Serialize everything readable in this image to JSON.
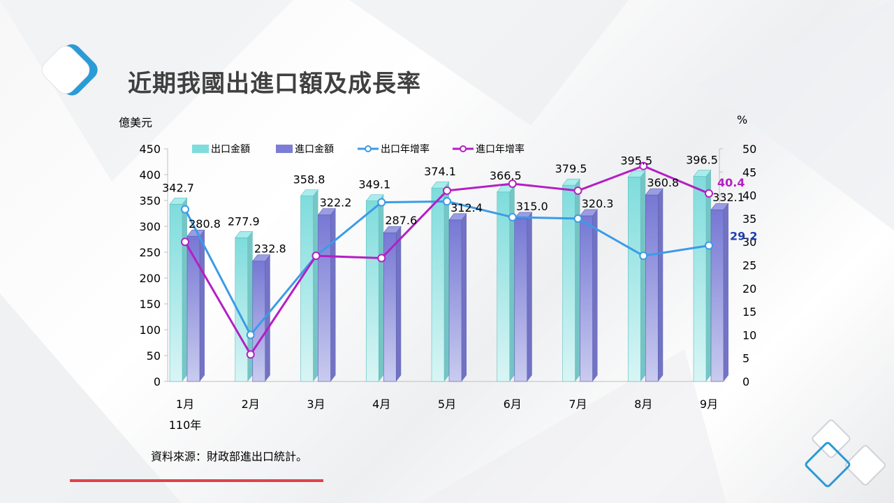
{
  "title": "近期我國出進口額及成長率",
  "source": "資料來源：財政部進出口統計。",
  "chart_data": {
    "type": "bar",
    "categories": [
      "1月",
      "2月",
      "3月",
      "4月",
      "5月",
      "6月",
      "7月",
      "8月",
      "9月"
    ],
    "year_label": "110年",
    "left_axis_unit": "億美元",
    "right_axis_unit": "%",
    "ylim_left": [
      0,
      450
    ],
    "ylim_right": [
      0,
      50
    ],
    "yticks_left": [
      0,
      50,
      100,
      150,
      200,
      250,
      300,
      350,
      400,
      450
    ],
    "yticks_right": [
      0,
      5,
      10,
      15,
      20,
      25,
      30,
      35,
      40,
      45,
      50
    ],
    "legend_position": "top",
    "series": [
      {
        "name": "出口金額",
        "type": "bar",
        "axis": "left",
        "color": "#7fdcdc",
        "values": [
          342.7,
          277.9,
          358.8,
          349.1,
          374.1,
          366.5,
          379.5,
          395.5,
          396.5
        ]
      },
      {
        "name": "進口金額",
        "type": "bar",
        "axis": "left",
        "color": "#7b7dd6",
        "values": [
          280.8,
          232.8,
          322.2,
          287.6,
          312.4,
          315.0,
          320.3,
          360.8,
          332.1
        ]
      },
      {
        "name": "出口年增率",
        "type": "line",
        "axis": "right",
        "color": "#3b9be8",
        "values": [
          37.0,
          10.0,
          27.0,
          38.5,
          38.7,
          35.3,
          35.0,
          27.0,
          29.2
        ]
      },
      {
        "name": "進口年增率",
        "type": "line",
        "axis": "right",
        "color": "#b41fc4",
        "values": [
          30.0,
          5.8,
          27.0,
          26.5,
          41.0,
          42.5,
          41.0,
          46.3,
          40.4
        ]
      }
    ],
    "labels": {
      "export": [
        "342.7",
        "277.9",
        "358.8",
        "349.1",
        "374.1",
        "366.5",
        "379.5",
        "395.5",
        "396.5"
      ],
      "import": [
        "280.8",
        "232.8",
        "322.2",
        "287.6",
        "312.4",
        "315.0",
        "320.3",
        "360.8",
        "332.1"
      ],
      "export_rate_last": "29.2",
      "import_rate_last": "40.4"
    }
  }
}
